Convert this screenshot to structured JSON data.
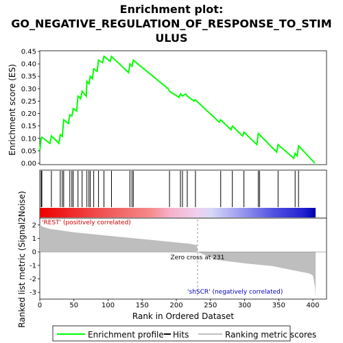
{
  "title_line1": "Enrichment plot:",
  "title_line2": "GO_NEGATIVE_REGULATION_OF_RESPONSE_TO_STIM",
  "title_line3": "ULUS",
  "chart_data": {
    "type": "line",
    "es_panel": {
      "ylabel": "Enrichment score (ES)",
      "ylim": [
        0.0,
        0.45
      ],
      "yticks": [
        "0.00",
        "0.05",
        "0.10",
        "0.15",
        "0.20",
        "0.25",
        "0.30",
        "0.35",
        "0.40",
        "0.45"
      ],
      "series": [
        {
          "name": "Enrichment profile",
          "color": "#00ff00",
          "x": [
            0,
            2,
            3,
            15,
            17,
            28,
            30,
            33,
            35,
            42,
            44,
            47,
            49,
            54,
            56,
            60,
            62,
            68,
            69,
            72,
            74,
            77,
            79,
            84,
            86,
            92,
            94,
            103,
            105,
            130,
            132,
            135,
            137,
            188,
            190,
            204,
            206,
            209,
            211,
            214,
            216,
            226,
            228,
            263,
            265,
            280,
            282,
            297,
            299,
            318,
            320,
            347,
            349,
            372,
            374,
            377,
            379,
            403
          ],
          "y": [
            0.05,
            0.1,
            0.105,
            0.08,
            0.11,
            0.08,
            0.115,
            0.108,
            0.175,
            0.16,
            0.195,
            0.19,
            0.22,
            0.21,
            0.27,
            0.26,
            0.29,
            0.27,
            0.33,
            0.32,
            0.35,
            0.34,
            0.38,
            0.37,
            0.415,
            0.405,
            0.43,
            0.41,
            0.43,
            0.365,
            0.4,
            0.39,
            0.415,
            0.3,
            0.29,
            0.265,
            0.28,
            0.27,
            0.275,
            0.278,
            0.27,
            0.25,
            0.255,
            0.165,
            0.175,
            0.135,
            0.15,
            0.11,
            0.125,
            0.075,
            0.12,
            0.045,
            0.075,
            0.02,
            0.04,
            0.03,
            0.07,
            0.0
          ]
        }
      ]
    },
    "hits": [
      2,
      3,
      17,
      30,
      33,
      35,
      44,
      47,
      49,
      56,
      62,
      69,
      72,
      74,
      79,
      86,
      94,
      105,
      132,
      135,
      137,
      190,
      206,
      209,
      216,
      228,
      265,
      282,
      299,
      320,
      322,
      349,
      374,
      379
    ],
    "ranked_metric": {
      "ylabel": "Ranked list metric (Signal2Noise)",
      "xlabel": "Rank in Ordered Dataset",
      "ylim": [
        -3.5,
        2.5
      ],
      "yticks": [
        "-3",
        "-2",
        "-1",
        "0",
        "1",
        "2"
      ],
      "xlim": [
        0,
        420
      ],
      "xticks": [
        "0",
        "50",
        "100",
        "150",
        "200",
        "250",
        "300",
        "350",
        "400"
      ],
      "n_genes": 404,
      "x": [
        0,
        5,
        15,
        30,
        50,
        80,
        110,
        140,
        170,
        200,
        220,
        230,
        231,
        260,
        300,
        340,
        360,
        380,
        395,
        400,
        403,
        404
      ],
      "y": [
        2.0,
        1.85,
        1.7,
        1.6,
        1.45,
        1.3,
        1.15,
        1.0,
        0.85,
        0.7,
        0.6,
        0.5,
        0.0,
        -0.6,
        -0.85,
        -1.05,
        -1.25,
        -1.45,
        -1.6,
        -1.75,
        -2.6,
        -3.3
      ],
      "zero_cross_label": "Zero cross at 231",
      "pos_label": "'REST' (positively correlated)",
      "neg_label": "'shSCR' (negatively correlated)"
    },
    "legend": {
      "position": "bottom",
      "items": [
        "Enrichment profile",
        "Hits",
        "Ranking metric scores"
      ]
    }
  }
}
